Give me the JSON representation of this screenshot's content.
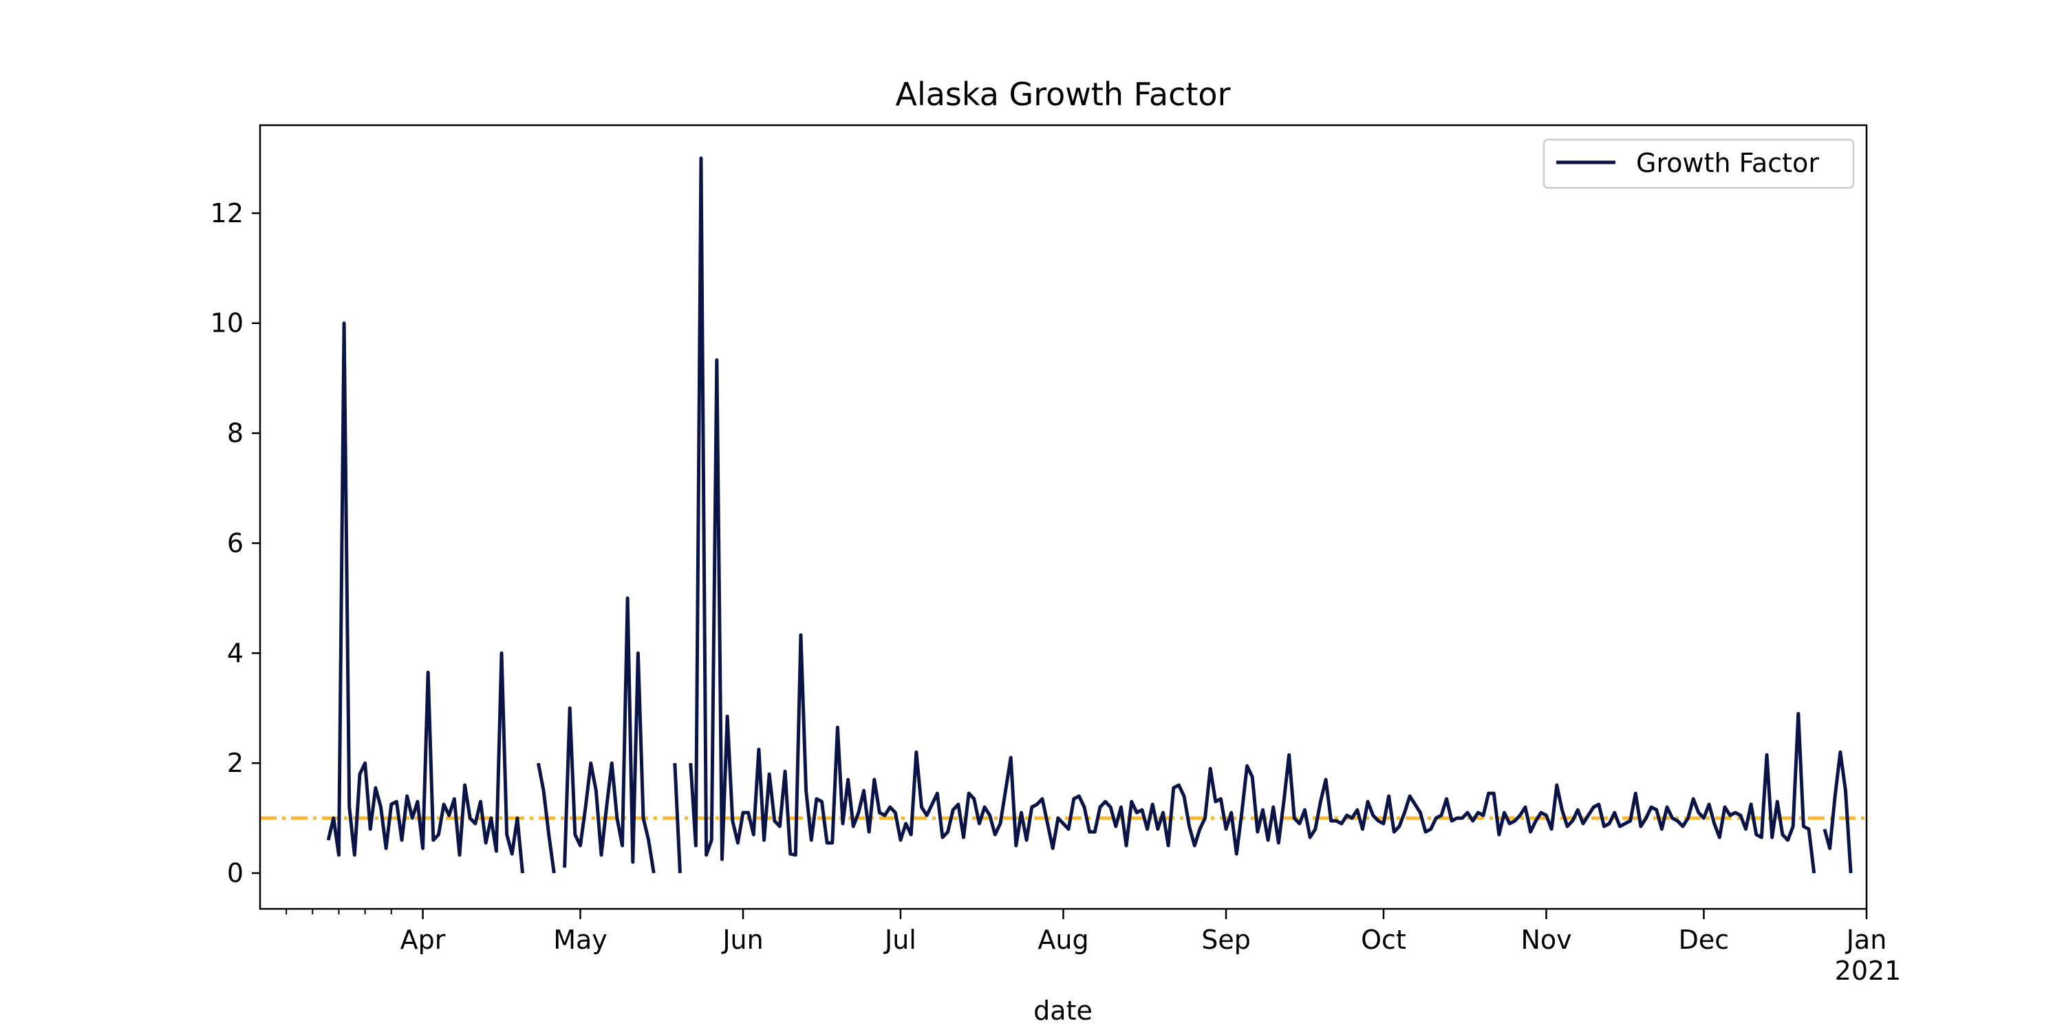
{
  "chart_data": {
    "type": "line",
    "title": "Alaska Growth Factor",
    "xlabel": "date",
    "ylabel": "",
    "x_range": [
      "2020-03-01",
      "2021-01-01"
    ],
    "ylim": [
      -0.65,
      13.6
    ],
    "y_ticks": [
      0,
      2,
      4,
      6,
      8,
      10,
      12
    ],
    "x_ticks": [
      {
        "date": "2020-04-01",
        "label": "Apr"
      },
      {
        "date": "2020-05-01",
        "label": "May"
      },
      {
        "date": "2020-06-01",
        "label": "Jun"
      },
      {
        "date": "2020-07-01",
        "label": "Jul"
      },
      {
        "date": "2020-08-01",
        "label": "Aug"
      },
      {
        "date": "2020-09-01",
        "label": "Sep"
      },
      {
        "date": "2020-10-01",
        "label": "Oct"
      },
      {
        "date": "2020-11-01",
        "label": "Nov"
      },
      {
        "date": "2020-12-01",
        "label": "Dec"
      },
      {
        "date": "2021-01-01",
        "label": "Jan",
        "sublabel": "2021"
      }
    ],
    "x_minor_ticks": [
      "2020-03-06",
      "2020-03-11",
      "2020-03-16",
      "2020-03-21",
      "2020-03-26"
    ],
    "grid": false,
    "legend": {
      "position": "top-right"
    },
    "reference_line": {
      "y": 1.0,
      "style": "dash-dot",
      "color": "#fbb829"
    },
    "series": [
      {
        "name": "Growth Factor",
        "color": "#0a1446",
        "start_date": "2020-03-14",
        "values": [
          0.6,
          1.0,
          0.33,
          10.0,
          1.2,
          0.33,
          1.8,
          2.0,
          0.8,
          1.55,
          1.2,
          0.45,
          1.25,
          1.3,
          0.6,
          1.4,
          1.0,
          1.3,
          0.45,
          3.65,
          0.6,
          0.7,
          1.25,
          1.05,
          1.35,
          0.33,
          1.6,
          1.0,
          0.9,
          1.3,
          0.55,
          1.0,
          0.4,
          4.0,
          0.7,
          0.35,
          1.0,
          0.0,
          null,
          null,
          2.0,
          1.5,
          0.7,
          0.0,
          null,
          0.1,
          3.0,
          0.7,
          0.5,
          1.2,
          2.0,
          1.5,
          0.33,
          1.2,
          2.0,
          1.0,
          0.5,
          5.0,
          0.2,
          4.0,
          1.0,
          0.6,
          0.0,
          null,
          null,
          null,
          2.0,
          0.0,
          null,
          2.0,
          0.5,
          13.0,
          0.33,
          0.6,
          9.33,
          0.25,
          2.85,
          0.95,
          0.55,
          1.1,
          1.1,
          0.7,
          2.25,
          0.6,
          1.8,
          0.95,
          0.85,
          1.85,
          0.35,
          0.33,
          4.33,
          1.5,
          0.6,
          1.35,
          1.3,
          0.55,
          0.55,
          2.65,
          0.9,
          1.7,
          0.85,
          1.1,
          1.5,
          0.75,
          1.7,
          1.1,
          1.05,
          1.2,
          1.1,
          0.6,
          0.9,
          0.7,
          2.2,
          1.2,
          1.05,
          1.25,
          1.45,
          0.65,
          0.75,
          1.15,
          1.25,
          0.65,
          1.45,
          1.35,
          0.9,
          1.2,
          1.05,
          0.7,
          0.9,
          1.5,
          2.1,
          0.5,
          1.1,
          0.6,
          1.2,
          1.25,
          1.35,
          0.9,
          0.45,
          1.0,
          0.9,
          0.8,
          1.35,
          1.4,
          1.2,
          0.75,
          0.75,
          1.2,
          1.3,
          1.2,
          0.85,
          1.2,
          0.5,
          1.3,
          1.1,
          1.15,
          0.8,
          1.25,
          0.8,
          1.1,
          0.5,
          1.55,
          1.6,
          1.4,
          0.85,
          0.5,
          0.8,
          1.0,
          1.9,
          1.3,
          1.35,
          0.8,
          1.1,
          0.35,
          1.1,
          1.95,
          1.75,
          0.75,
          1.15,
          0.6,
          1.2,
          0.55,
          1.3,
          2.15,
          1.0,
          0.9,
          1.15,
          0.65,
          0.8,
          1.3,
          1.7,
          0.95,
          0.95,
          0.9,
          1.05,
          1.0,
          1.15,
          0.8,
          1.3,
          1.05,
          0.95,
          0.9,
          1.4,
          0.75,
          0.85,
          1.1,
          1.4,
          1.25,
          1.1,
          0.75,
          0.8,
          1.0,
          1.05,
          1.35,
          0.95,
          1.0,
          1.0,
          1.1,
          0.95,
          1.1,
          1.05,
          1.45,
          1.45,
          0.7,
          1.1,
          0.9,
          0.95,
          1.05,
          1.2,
          0.75,
          0.95,
          1.1,
          1.05,
          0.8,
          1.6,
          1.15,
          0.85,
          0.95,
          1.15,
          0.9,
          1.05,
          1.2,
          1.25,
          0.85,
          0.9,
          1.1,
          0.85,
          0.9,
          0.95,
          1.45,
          0.85,
          1.0,
          1.2,
          1.15,
          0.8,
          1.2,
          1.0,
          0.95,
          0.85,
          1.0,
          1.35,
          1.1,
          1.0,
          1.25,
          0.9,
          0.65,
          1.2,
          1.05,
          1.1,
          1.05,
          0.8,
          1.25,
          0.7,
          0.65,
          2.15,
          0.65,
          1.3,
          0.7,
          0.6,
          0.85,
          2.9,
          0.85,
          0.8,
          0.0,
          null,
          0.8,
          0.45,
          1.4,
          2.2,
          1.5,
          0.0
        ]
      }
    ]
  }
}
